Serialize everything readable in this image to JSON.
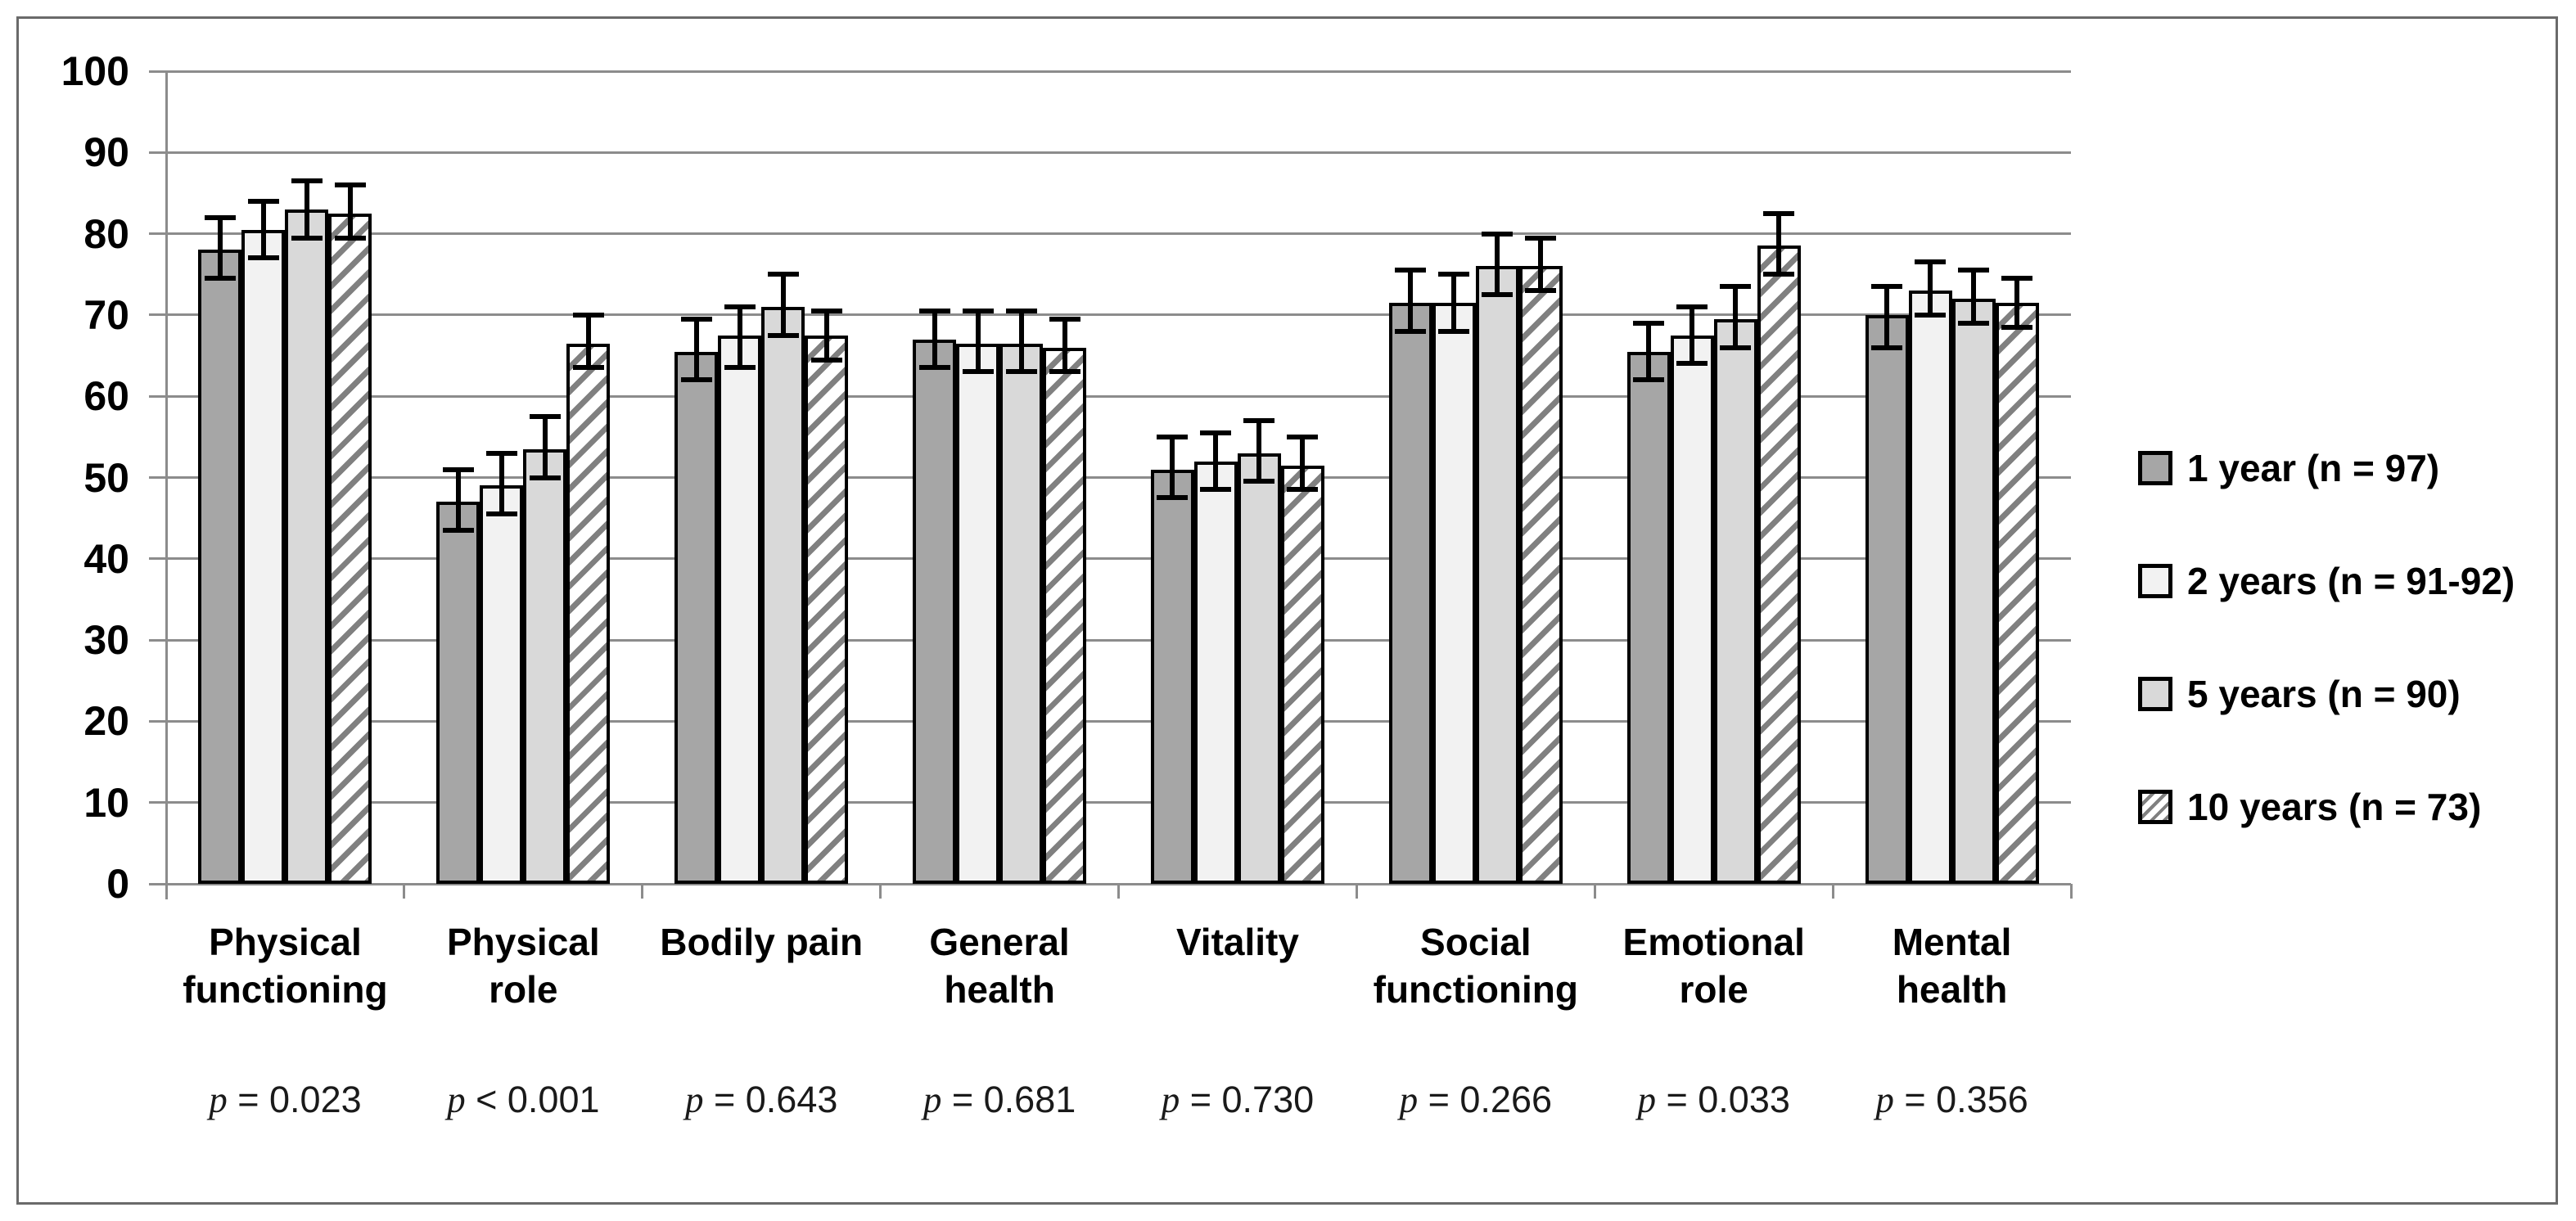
{
  "figure": {
    "background_color": "#ffffff",
    "border_color": "#6a6a6a",
    "gridline_color": "#8c8c8c",
    "bar_border_color": "#000000",
    "error_bar_color": "#000000",
    "hatch_color": "#808080"
  },
  "chart_data": {
    "type": "bar",
    "title": "",
    "xlabel": "",
    "ylabel": "",
    "grid": true,
    "error_bars": true,
    "legend_position": "right",
    "y_axis": {
      "min": 0,
      "max": 100,
      "step": 10,
      "tick_labels": [
        "0",
        "10",
        "20",
        "30",
        "40",
        "50",
        "60",
        "70",
        "80",
        "90",
        "100"
      ]
    },
    "categories": [
      {
        "label_lines": [
          "Physical",
          "functioning"
        ],
        "p_value": "p = 0.023"
      },
      {
        "label_lines": [
          "Physical",
          "role"
        ],
        "p_value": "p < 0.001"
      },
      {
        "label_lines": [
          "Bodily pain"
        ],
        "p_value": "p = 0.643"
      },
      {
        "label_lines": [
          "General",
          "health"
        ],
        "p_value": "p = 0.681"
      },
      {
        "label_lines": [
          "Vitality"
        ],
        "p_value": "p = 0.730"
      },
      {
        "label_lines": [
          "Social",
          "functioning"
        ],
        "p_value": "p = 0.266"
      },
      {
        "label_lines": [
          "Emotional",
          "role"
        ],
        "p_value": "p = 0.033"
      },
      {
        "label_lines": [
          "Mental",
          "health"
        ],
        "p_value": "p = 0.356"
      }
    ],
    "series": [
      {
        "name": "1 year (n = 97)",
        "pattern": "solid",
        "fill": "#a6a6a6",
        "values": [
          78,
          47,
          65.5,
          67,
          51,
          71.5,
          65.5,
          70
        ],
        "err_low": [
          74.5,
          43.5,
          62,
          63.5,
          47.5,
          68,
          62,
          66
        ],
        "err_high": [
          82,
          51,
          69.5,
          70.5,
          55,
          75.5,
          69,
          73.5
        ]
      },
      {
        "name": "2 years (n = 91-92)",
        "pattern": "solid",
        "fill": "#f2f2f2",
        "values": [
          80.5,
          49,
          67.5,
          66.5,
          52,
          71.5,
          67.5,
          73
        ],
        "err_low": [
          77,
          45.5,
          63.5,
          63,
          48.5,
          68,
          64,
          70
        ],
        "err_high": [
          84,
          53,
          71,
          70.5,
          55.5,
          75,
          71,
          76.5
        ]
      },
      {
        "name": "5 years (n = 90)",
        "pattern": "solid",
        "fill": "#d9d9d9",
        "values": [
          83,
          53.5,
          71,
          66.5,
          53,
          76,
          69.5,
          72
        ],
        "err_low": [
          79.5,
          50,
          67.5,
          63,
          49.5,
          72.5,
          66,
          69
        ],
        "err_high": [
          86.5,
          57.5,
          75,
          70.5,
          57,
          80,
          73.5,
          75.5
        ]
      },
      {
        "name": "10 years (n = 73)",
        "pattern": "hatch",
        "fill": "#ffffff",
        "values": [
          82.5,
          66.5,
          67.5,
          66,
          51.5,
          76,
          78.5,
          71.5
        ],
        "err_low": [
          79.5,
          63.5,
          64.5,
          63,
          48.5,
          73,
          75,
          68.5
        ],
        "err_high": [
          86,
          70,
          70.5,
          69.5,
          55,
          79.5,
          82.5,
          74.5
        ]
      }
    ]
  }
}
